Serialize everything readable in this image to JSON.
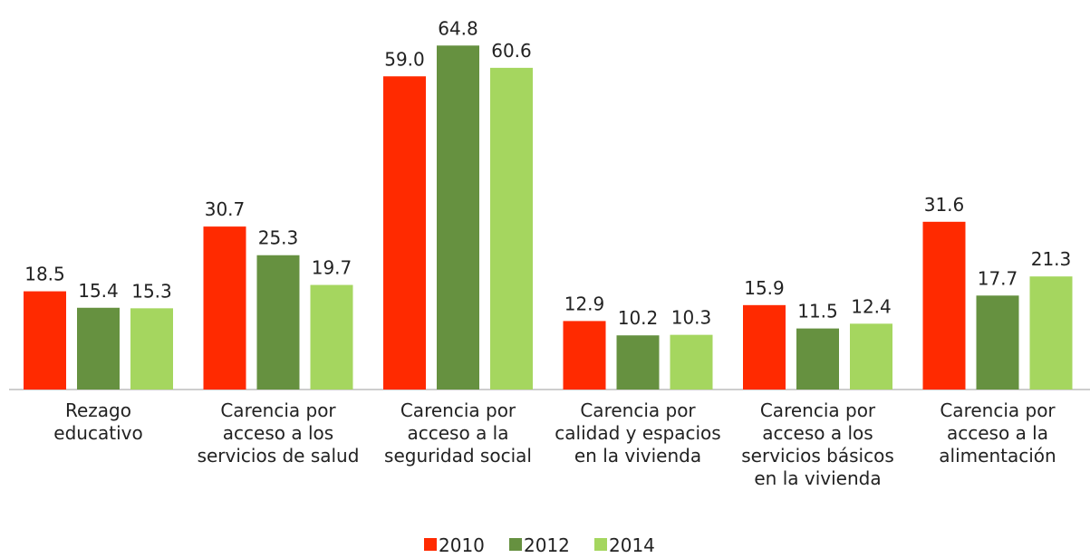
{
  "chart_data": {
    "type": "bar",
    "categories": [
      "Rezago\neducativo",
      "Carencia por\nacceso a los\nservicios de salud",
      "Carencia por\nacceso a la\nseguridad social",
      "Carencia por\ncalidad y espacios\nen la vivienda",
      "Carencia por\nacceso a los\nservicios básicos\nen la vivienda",
      "Carencia por\nacceso a la\nalimentación"
    ],
    "series": [
      {
        "name": "2010",
        "color": "#ff2a00",
        "values": [
          18.5,
          30.7,
          59.0,
          12.9,
          15.9,
          31.6
        ],
        "value_labels": [
          "18.5",
          "30.7",
          "59.0",
          "12.9",
          "15.9",
          "31.6"
        ]
      },
      {
        "name": "2012",
        "color": "#669140",
        "values": [
          15.4,
          25.3,
          64.8,
          10.2,
          11.5,
          17.7
        ],
        "value_labels": [
          "15.4",
          "25.3",
          "64.8",
          "10.2",
          "11.5",
          "17.7"
        ]
      },
      {
        "name": "2014",
        "color": "#a5d65f",
        "values": [
          15.3,
          19.7,
          60.6,
          10.3,
          12.4,
          21.3
        ],
        "value_labels": [
          "15.3",
          "19.7",
          "60.6",
          "10.3",
          "12.4",
          "21.3"
        ]
      }
    ],
    "legend": "bottom"
  }
}
